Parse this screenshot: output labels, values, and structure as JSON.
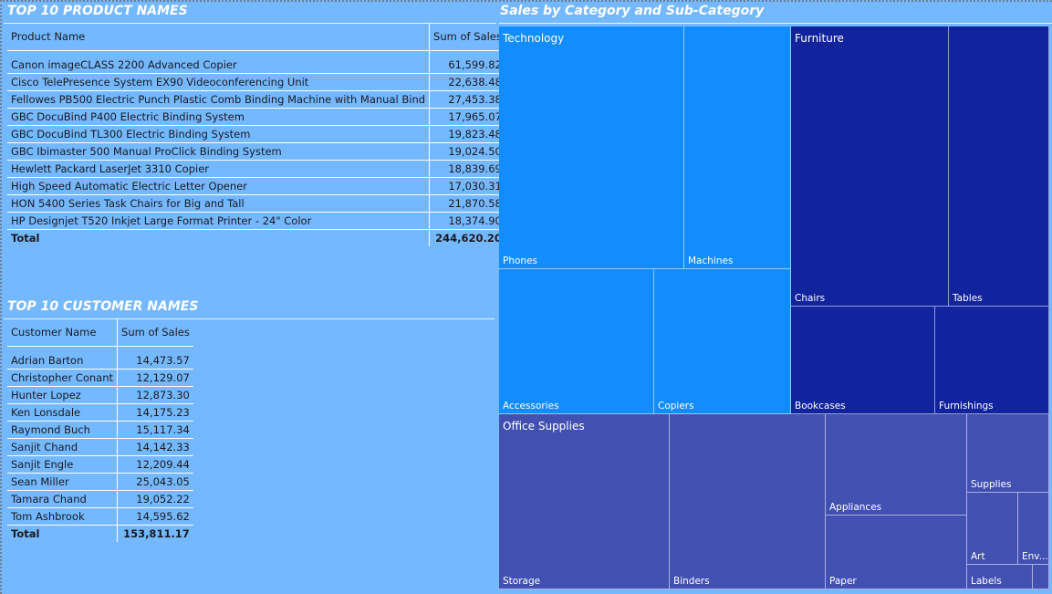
{
  "colors": {
    "background": "#74B8FF",
    "technology": "#118DFF",
    "furniture": "#12239E",
    "office_supplies": "#4251B1"
  },
  "products": {
    "title": "TOP 10 PRODUCT NAMES",
    "columns": [
      "Product Name",
      "Sum of Sales"
    ],
    "rows": [
      {
        "name": "Canon imageCLASS 2200 Advanced Copier",
        "sales": "61,599.82"
      },
      {
        "name": "Cisco TelePresence System EX90 Videoconferencing Unit",
        "sales": "22,638.48"
      },
      {
        "name": "Fellowes PB500 Electric Punch Plastic Comb Binding Machine with Manual Bind",
        "sales": "27,453.38"
      },
      {
        "name": "GBC DocuBind P400 Electric Binding System",
        "sales": "17,965.07"
      },
      {
        "name": "GBC DocuBind TL300 Electric Binding System",
        "sales": "19,823.48"
      },
      {
        "name": "GBC Ibimaster 500 Manual ProClick Binding System",
        "sales": "19,024.50"
      },
      {
        "name": "Hewlett Packard LaserJet 3310 Copier",
        "sales": "18,839.69"
      },
      {
        "name": "High Speed Automatic Electric Letter Opener",
        "sales": "17,030.31"
      },
      {
        "name": "HON 5400 Series Task Chairs for Big and Tall",
        "sales": "21,870.58"
      },
      {
        "name": "HP Designjet T520 Inkjet Large Format Printer - 24\" Color",
        "sales": "18,374.90"
      }
    ],
    "total_label": "Total",
    "total_value": "244,620.20"
  },
  "customers": {
    "title": "TOP 10 CUSTOMER NAMES",
    "columns": [
      "Customer Name",
      "Sum of Sales"
    ],
    "rows": [
      {
        "name": "Adrian Barton",
        "sales": "14,473.57"
      },
      {
        "name": "Christopher Conant",
        "sales": "12,129.07"
      },
      {
        "name": "Hunter Lopez",
        "sales": "12,873.30"
      },
      {
        "name": "Ken Lonsdale",
        "sales": "14,175.23"
      },
      {
        "name": "Raymond Buch",
        "sales": "15,117.34"
      },
      {
        "name": "Sanjit Chand",
        "sales": "14,142.33"
      },
      {
        "name": "Sanjit Engle",
        "sales": "12,209.44"
      },
      {
        "name": "Sean Miller",
        "sales": "25,043.05"
      },
      {
        "name": "Tamara Chand",
        "sales": "19,052.22"
      },
      {
        "name": "Tom Ashbrook",
        "sales": "14,595.62"
      }
    ],
    "total_label": "Total",
    "total_value": "153,811.17"
  },
  "treemap": {
    "title": "Sales by Category and Sub-Category",
    "categories": [
      {
        "name": "Technology",
        "subcategories": [
          "Phones",
          "Machines",
          "Accessories",
          "Copiers"
        ]
      },
      {
        "name": "Furniture",
        "subcategories": [
          "Chairs",
          "Tables",
          "Bookcases",
          "Furnishings"
        ]
      },
      {
        "name": "Office Supplies",
        "subcategories": [
          "Storage",
          "Binders",
          "Appliances",
          "Paper",
          "Supplies",
          "Art",
          "Env...",
          "Labels",
          ""
        ]
      }
    ]
  }
}
